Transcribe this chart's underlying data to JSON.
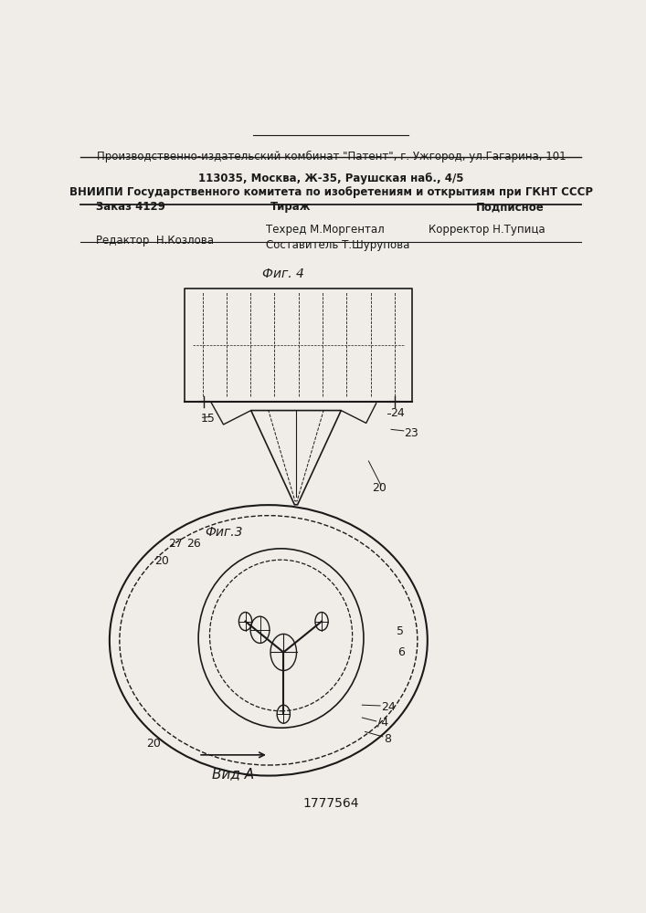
{
  "patent_number": "1777564",
  "fig3_label": "Фиг.3",
  "fig4_label": "Фиг. 4",
  "view_label": "Вид А",
  "bg_color": "#f0ede8",
  "line_color": "#1a1a1a",
  "editor_line": "Редактор  Н.Козлова",
  "compiler_line": "Составитель Т.Шурупова",
  "techred_line": "Техред М.Моргентал",
  "corrector_line": "Корректор Н.Тупица",
  "order_line": "Заказ 4129",
  "tirazh_line": "Тираж",
  "podpisnoe_line": "Подписное",
  "vniiipi_line1": "ВНИИПИ Государственного комитета по изобретениям и открытиям при ГКНТ СССР",
  "vniiipi_line2": "113035, Москва, Ж-35, Раушская наб., 4/5",
  "publisher_line": "Производственно-издательский комбинат \"Патент\", г. Ужгород, ул.Гагарина, 101"
}
